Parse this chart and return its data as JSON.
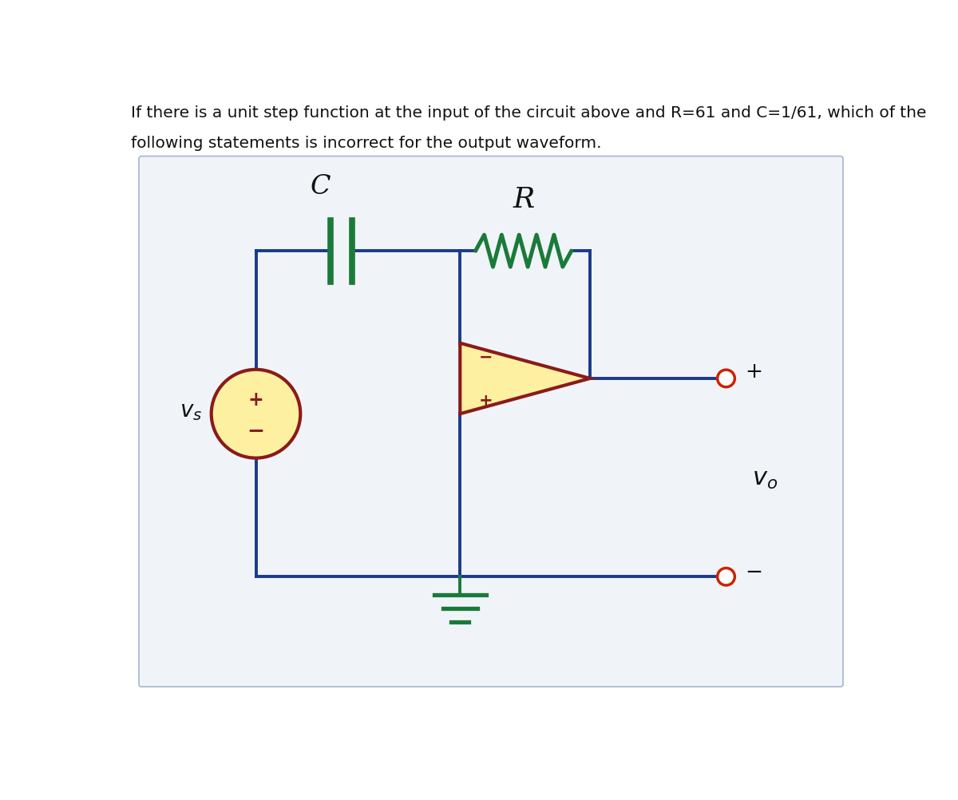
{
  "title_line1": "If there is a unit step function at the input of the circuit above and R=61 and C=1/61, which of the",
  "title_line2": "following statements is incorrect for the output waveform.",
  "title_fontsize": 14.5,
  "title_color": "#111111",
  "wire_color": "#1a3a8a",
  "wire_lw": 2.8,
  "resistor_color": "#1a7a3a",
  "cap_color": "#1a7a3a",
  "opamp_fill": "#fdf0a0",
  "opamp_border": "#8b1a1a",
  "source_fill": "#fdf0a0",
  "source_border": "#8b1a1a",
  "terminal_color": "#cc2200",
  "ground_color": "#1a7a3a",
  "box_edge": "#aabbd0",
  "box_face": "#f0f4f8"
}
